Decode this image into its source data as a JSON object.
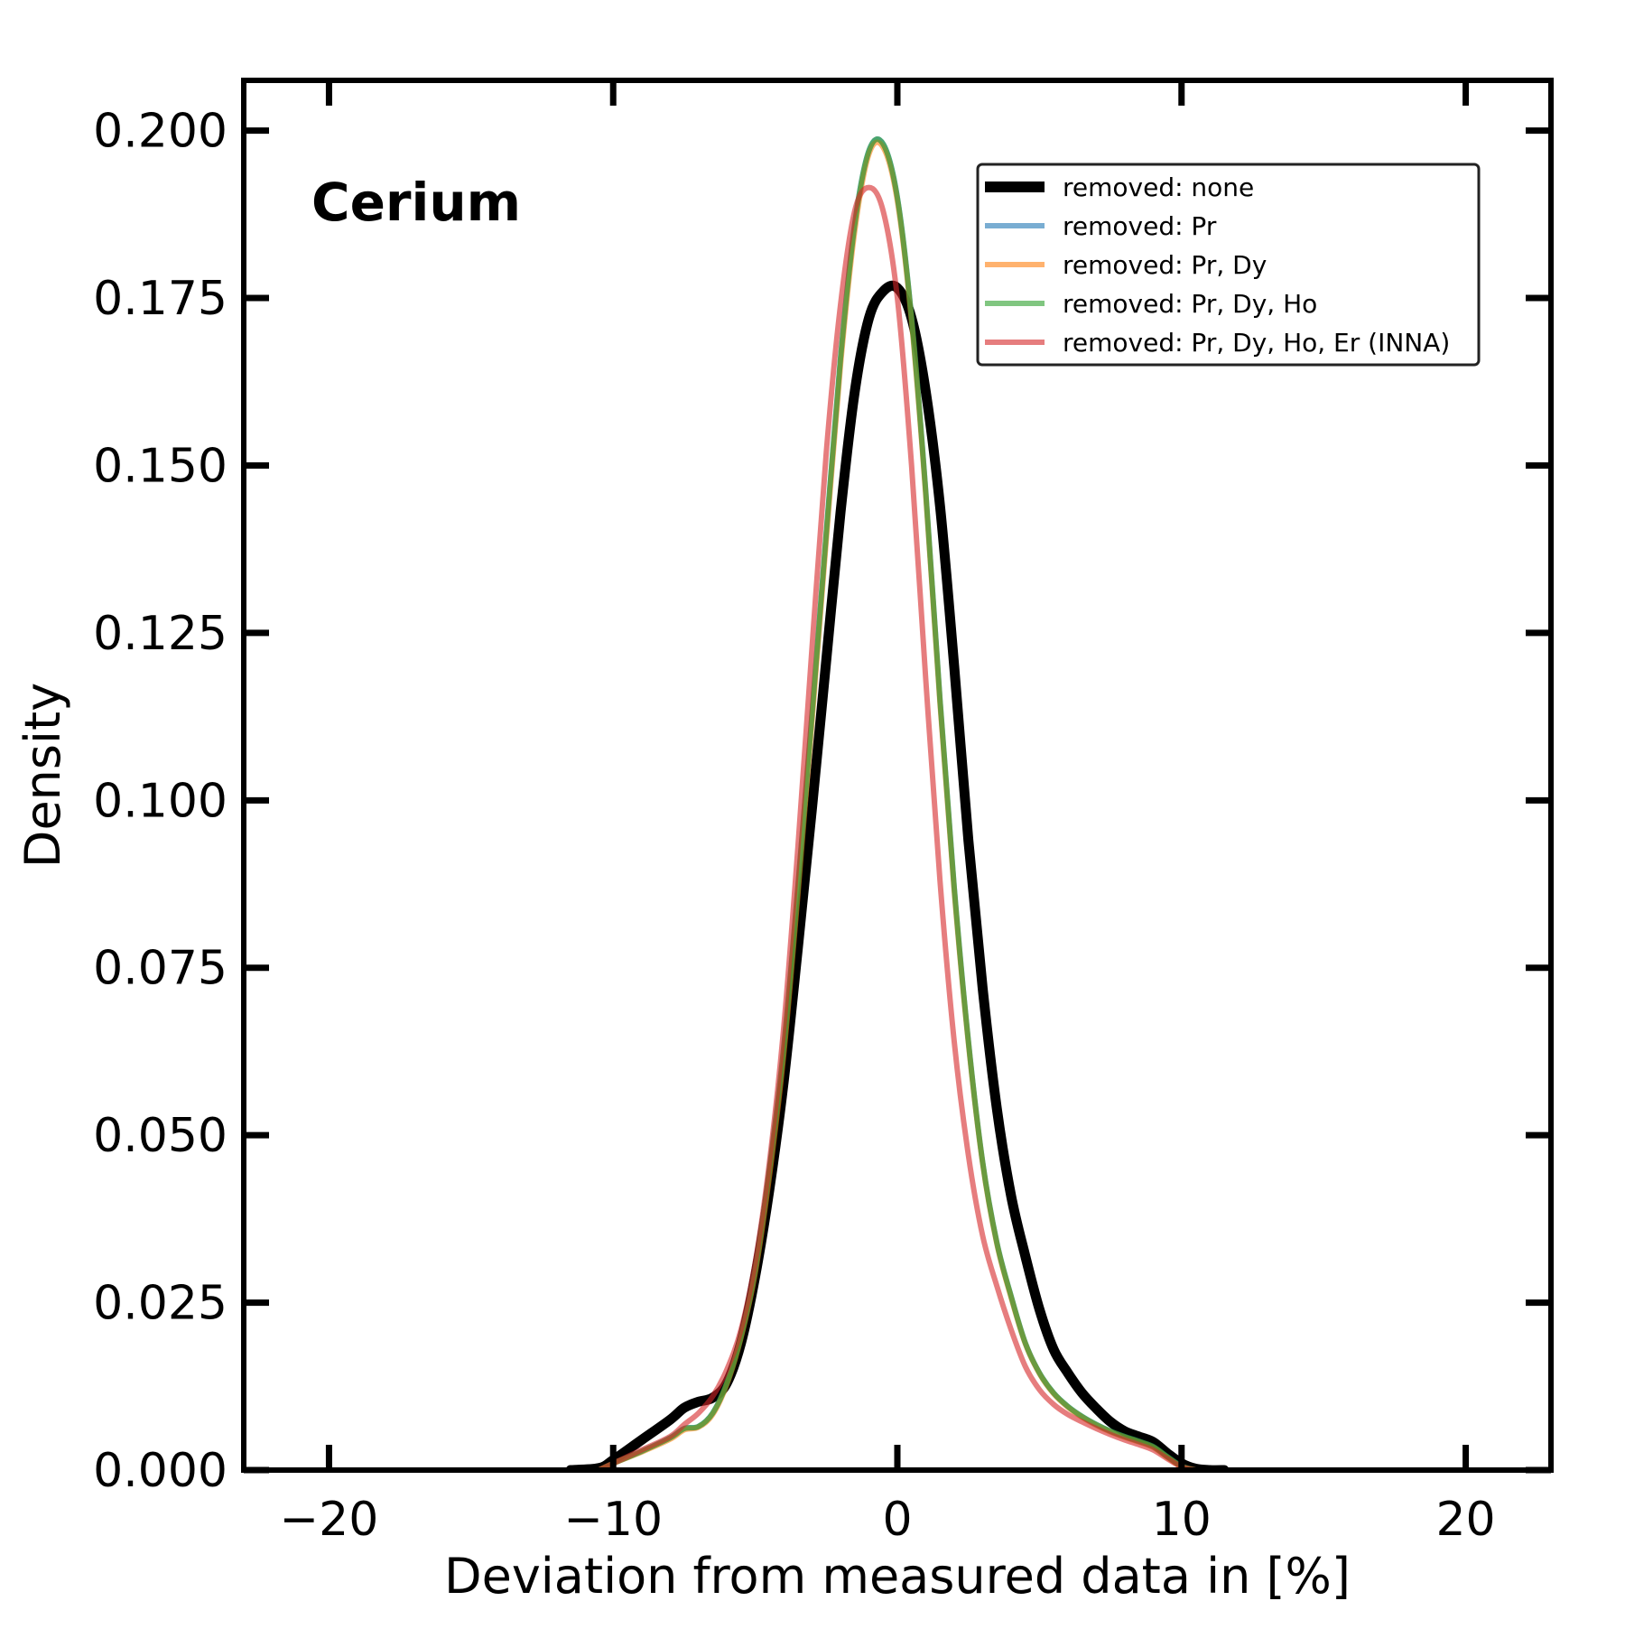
{
  "chart_data": {
    "type": "line",
    "title": "",
    "annotation": "Cerium",
    "xlabel": "Deviation from measured data in [%]",
    "ylabel": "Density",
    "xlim": [
      -23,
      23
    ],
    "ylim": [
      0,
      0.2075
    ],
    "grid": false,
    "legend_placement": "top-right",
    "x_ticks": [
      -20,
      -10,
      0,
      10,
      20
    ],
    "x_tick_labels": [
      "−20",
      "−10",
      "0",
      "10",
      "20"
    ],
    "y_ticks": [
      0,
      0.025,
      0.05,
      0.075,
      0.1,
      0.125,
      0.15,
      0.175,
      0.2
    ],
    "y_tick_labels": [
      "0.000",
      "0.025",
      "0.050",
      "0.075",
      "0.100",
      "0.125",
      "0.150",
      "0.175",
      "0.200"
    ],
    "series": [
      {
        "name": "removed: none",
        "color": "#000000",
        "x": [
          -11.5,
          -10.5,
          -10,
          -9,
          -8,
          -7.5,
          -7,
          -6.5,
          -6,
          -5.5,
          -5,
          -4.5,
          -4,
          -3.5,
          -3,
          -2.5,
          -2,
          -1.5,
          -1,
          -0.5,
          0,
          0.5,
          1,
          1.5,
          2,
          2.5,
          3,
          3.5,
          4,
          4.5,
          5,
          5.5,
          6,
          6.5,
          7,
          7.5,
          8,
          8.5,
          9,
          9.5,
          10,
          10.5,
          11,
          11.5
        ],
        "y": [
          0,
          0.0003,
          0.0015,
          0.0045,
          0.0075,
          0.0093,
          0.0102,
          0.0108,
          0.013,
          0.019,
          0.029,
          0.042,
          0.058,
          0.078,
          0.099,
          0.121,
          0.143,
          0.161,
          0.172,
          0.176,
          0.1765,
          0.172,
          0.161,
          0.144,
          0.12,
          0.094,
          0.072,
          0.054,
          0.041,
          0.032,
          0.024,
          0.018,
          0.0145,
          0.0115,
          0.0092,
          0.0072,
          0.0058,
          0.005,
          0.0042,
          0.0025,
          0.001,
          0.0002,
          0,
          0
        ]
      },
      {
        "name": "removed: Pr",
        "color": "#1f77b4",
        "x": [
          -10.5,
          -10,
          -9,
          -8,
          -7.5,
          -7,
          -6.5,
          -6,
          -5.5,
          -5,
          -4.5,
          -4,
          -3.5,
          -3,
          -2.5,
          -2,
          -1.5,
          -1,
          -0.5,
          0,
          0.5,
          1,
          1.5,
          2,
          2.5,
          3,
          3.5,
          4,
          4.5,
          5,
          5.5,
          6,
          6.5,
          7,
          7.5,
          8,
          8.5,
          9,
          9.5,
          10,
          10.5
        ],
        "y": [
          0,
          0.001,
          0.0028,
          0.0048,
          0.0062,
          0.0065,
          0.0085,
          0.013,
          0.02,
          0.03,
          0.045,
          0.063,
          0.087,
          0.113,
          0.14,
          0.166,
          0.186,
          0.197,
          0.198,
          0.19,
          0.172,
          0.146,
          0.115,
          0.087,
          0.064,
          0.046,
          0.034,
          0.026,
          0.019,
          0.0145,
          0.0115,
          0.0095,
          0.008,
          0.0068,
          0.0058,
          0.005,
          0.0043,
          0.0035,
          0.002,
          0.0006,
          0
        ]
      },
      {
        "name": "removed: Pr, Dy",
        "color": "#ff7f0e",
        "x": [
          -10.5,
          -10,
          -9,
          -8,
          -7.5,
          -7,
          -6.5,
          -6,
          -5.5,
          -5,
          -4.5,
          -4,
          -3.5,
          -3,
          -2.5,
          -2,
          -1.5,
          -1,
          -0.5,
          0,
          0.5,
          1,
          1.5,
          2,
          2.5,
          3,
          3.5,
          4,
          4.5,
          5,
          5.5,
          6,
          6.5,
          7,
          7.5,
          8,
          8.5,
          9,
          9.5,
          10,
          10.5
        ],
        "y": [
          0,
          0.001,
          0.0027,
          0.0046,
          0.006,
          0.0064,
          0.0083,
          0.0128,
          0.0198,
          0.0295,
          0.044,
          0.062,
          0.086,
          0.112,
          0.139,
          0.165,
          0.185,
          0.1965,
          0.1975,
          0.1895,
          0.1715,
          0.1455,
          0.1145,
          0.0865,
          0.0637,
          0.0458,
          0.0338,
          0.0258,
          0.0189,
          0.0144,
          0.0114,
          0.0094,
          0.0079,
          0.0067,
          0.0057,
          0.0049,
          0.0042,
          0.0034,
          0.0019,
          0.0005,
          0
        ]
      },
      {
        "name": "removed: Pr, Dy, Ho",
        "color": "#2ca02c",
        "x": [
          -10.5,
          -10,
          -9,
          -8,
          -7.5,
          -7,
          -6.5,
          -6,
          -5.5,
          -5,
          -4.5,
          -4,
          -3.5,
          -3,
          -2.5,
          -2,
          -1.5,
          -1,
          -0.5,
          0,
          0.5,
          1,
          1.5,
          2,
          2.5,
          3,
          3.5,
          4,
          4.5,
          5,
          5.5,
          6,
          6.5,
          7,
          7.5,
          8,
          8.5,
          9,
          9.5,
          10,
          10.5
        ],
        "y": [
          0,
          0.001,
          0.0028,
          0.0048,
          0.0062,
          0.0065,
          0.0085,
          0.013,
          0.02,
          0.03,
          0.045,
          0.063,
          0.087,
          0.113,
          0.14,
          0.166,
          0.186,
          0.197,
          0.198,
          0.19,
          0.172,
          0.146,
          0.115,
          0.087,
          0.064,
          0.046,
          0.034,
          0.026,
          0.019,
          0.0145,
          0.0115,
          0.0095,
          0.008,
          0.0068,
          0.0058,
          0.005,
          0.0043,
          0.0035,
          0.002,
          0.0006,
          0
        ]
      },
      {
        "name": "removed: Pr, Dy, Ho, Er (INNA)",
        "color": "#d62728",
        "x": [
          -10.5,
          -10,
          -9,
          -8,
          -7.5,
          -7,
          -6.5,
          -6,
          -5.5,
          -5,
          -4.5,
          -4,
          -3.5,
          -3,
          -2.5,
          -2,
          -1.5,
          -1,
          -0.5,
          0,
          0.5,
          1,
          1.5,
          2,
          2.5,
          3,
          3.5,
          4,
          4.5,
          5,
          5.5,
          6,
          6.5,
          7,
          7.5,
          8,
          8.5,
          9,
          9.5,
          10,
          10.5
        ],
        "y": [
          0,
          0.001,
          0.003,
          0.005,
          0.0068,
          0.0085,
          0.011,
          0.015,
          0.021,
          0.031,
          0.046,
          0.066,
          0.093,
          0.123,
          0.152,
          0.174,
          0.188,
          0.1915,
          0.188,
          0.175,
          0.15,
          0.118,
          0.088,
          0.064,
          0.047,
          0.035,
          0.0275,
          0.021,
          0.0155,
          0.012,
          0.0098,
          0.0083,
          0.0072,
          0.0062,
          0.0053,
          0.0045,
          0.0038,
          0.003,
          0.0017,
          0.0005,
          0
        ]
      }
    ]
  }
}
